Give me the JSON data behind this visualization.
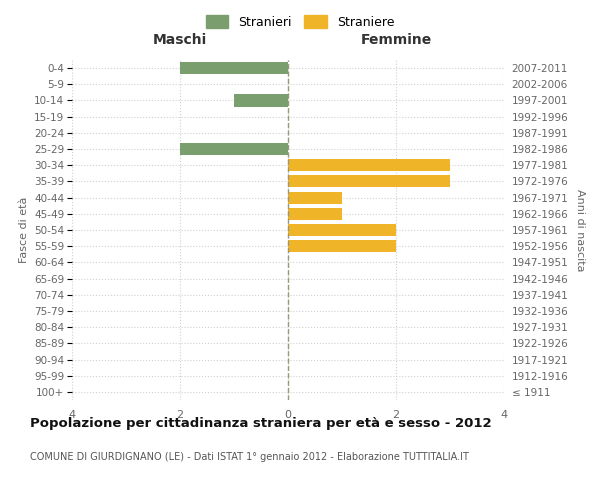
{
  "age_groups": [
    "100+",
    "95-99",
    "90-94",
    "85-89",
    "80-84",
    "75-79",
    "70-74",
    "65-69",
    "60-64",
    "55-59",
    "50-54",
    "45-49",
    "40-44",
    "35-39",
    "30-34",
    "25-29",
    "20-24",
    "15-19",
    "10-14",
    "5-9",
    "0-4"
  ],
  "birth_years": [
    "≤ 1911",
    "1912-1916",
    "1917-1921",
    "1922-1926",
    "1927-1931",
    "1932-1936",
    "1937-1941",
    "1942-1946",
    "1947-1951",
    "1952-1956",
    "1957-1961",
    "1962-1966",
    "1967-1971",
    "1972-1976",
    "1977-1981",
    "1982-1986",
    "1987-1991",
    "1992-1996",
    "1997-2001",
    "2002-2006",
    "2007-2011"
  ],
  "maschi": [
    0,
    0,
    0,
    0,
    0,
    0,
    0,
    0,
    0,
    0,
    0,
    0,
    0,
    0,
    0,
    2,
    0,
    0,
    1,
    0,
    2
  ],
  "femmine": [
    0,
    0,
    0,
    0,
    0,
    0,
    0,
    0,
    0,
    2,
    2,
    1,
    1,
    3,
    3,
    0,
    0,
    0,
    0,
    0,
    0
  ],
  "maschi_color": "#7a9e6e",
  "femmine_color": "#f0b429",
  "title": "Popolazione per cittadinanza straniera per età e sesso - 2012",
  "subtitle": "COMUNE DI GIURDIGNANO (LE) - Dati ISTAT 1° gennaio 2012 - Elaborazione TUTTITALIA.IT",
  "xlabel_maschi": "Maschi",
  "xlabel_femmine": "Femmine",
  "ylabel_left": "Fasce di età",
  "ylabel_right": "Anni di nascita",
  "legend_maschi": "Stranieri",
  "legend_femmine": "Straniere",
  "xlim": 4,
  "background_color": "#ffffff",
  "grid_color": "#d0d0d0",
  "bar_height": 0.75
}
